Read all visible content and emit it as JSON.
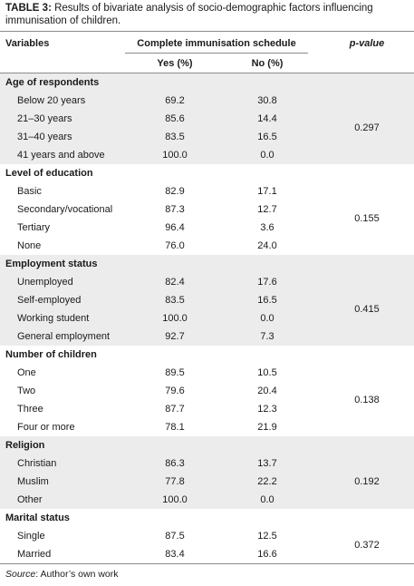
{
  "caption": {
    "label": "TABLE 3:",
    "text": "Results of bivariate analysis of socio-demographic factors influencing immunisation of children."
  },
  "headers": {
    "variables": "Variables",
    "complete": "Complete immunisation schedule",
    "pvalue": "p-value",
    "yes": "Yes (%)",
    "no": "No (%)"
  },
  "groups": [
    {
      "title": "Age of respondents",
      "shaded": true,
      "pvalue": "0.297",
      "rows": [
        {
          "label": "Below 20 years",
          "yes": "69.2",
          "no": "30.8"
        },
        {
          "label": "21–30 years",
          "yes": "85.6",
          "no": "14.4"
        },
        {
          "label": "31–40 years",
          "yes": "83.5",
          "no": "16.5"
        },
        {
          "label": "41 years and above",
          "yes": "100.0",
          "no": "0.0"
        }
      ]
    },
    {
      "title": "Level of education",
      "shaded": false,
      "pvalue": "0.155",
      "rows": [
        {
          "label": "Basic",
          "yes": "82.9",
          "no": "17.1"
        },
        {
          "label": "Secondary/vocational",
          "yes": "87.3",
          "no": "12.7"
        },
        {
          "label": "Tertiary",
          "yes": "96.4",
          "no": "3.6"
        },
        {
          "label": "None",
          "yes": "76.0",
          "no": "24.0"
        }
      ]
    },
    {
      "title": "Employment status",
      "shaded": true,
      "pvalue": "0.415",
      "rows": [
        {
          "label": "Unemployed",
          "yes": "82.4",
          "no": "17.6"
        },
        {
          "label": "Self-employed",
          "yes": "83.5",
          "no": "16.5"
        },
        {
          "label": "Working student",
          "yes": "100.0",
          "no": "0.0"
        },
        {
          "label": "General employment",
          "yes": "92.7",
          "no": "7.3"
        }
      ]
    },
    {
      "title": "Number of children",
      "shaded": false,
      "pvalue": "0.138",
      "rows": [
        {
          "label": "One",
          "yes": "89.5",
          "no": "10.5"
        },
        {
          "label": "Two",
          "yes": "79.6",
          "no": "20.4"
        },
        {
          "label": "Three",
          "yes": "87.7",
          "no": "12.3"
        },
        {
          "label": "Four or more",
          "yes": "78.1",
          "no": "21.9"
        }
      ]
    },
    {
      "title": "Religion",
      "shaded": true,
      "pvalue": "0.192",
      "rows": [
        {
          "label": "Christian",
          "yes": "86.3",
          "no": "13.7"
        },
        {
          "label": "Muslim",
          "yes": "77.8",
          "no": "22.2"
        },
        {
          "label": "Other",
          "yes": "100.0",
          "no": "0.0"
        }
      ]
    },
    {
      "title": "Marital status",
      "shaded": false,
      "pvalue": "0.372",
      "rows": [
        {
          "label": "Single",
          "yes": "87.5",
          "no": "12.5"
        },
        {
          "label": "Married",
          "yes": "83.4",
          "no": "16.6"
        }
      ]
    }
  ],
  "source": {
    "label": "Source",
    "text": ": Author’s own work"
  }
}
